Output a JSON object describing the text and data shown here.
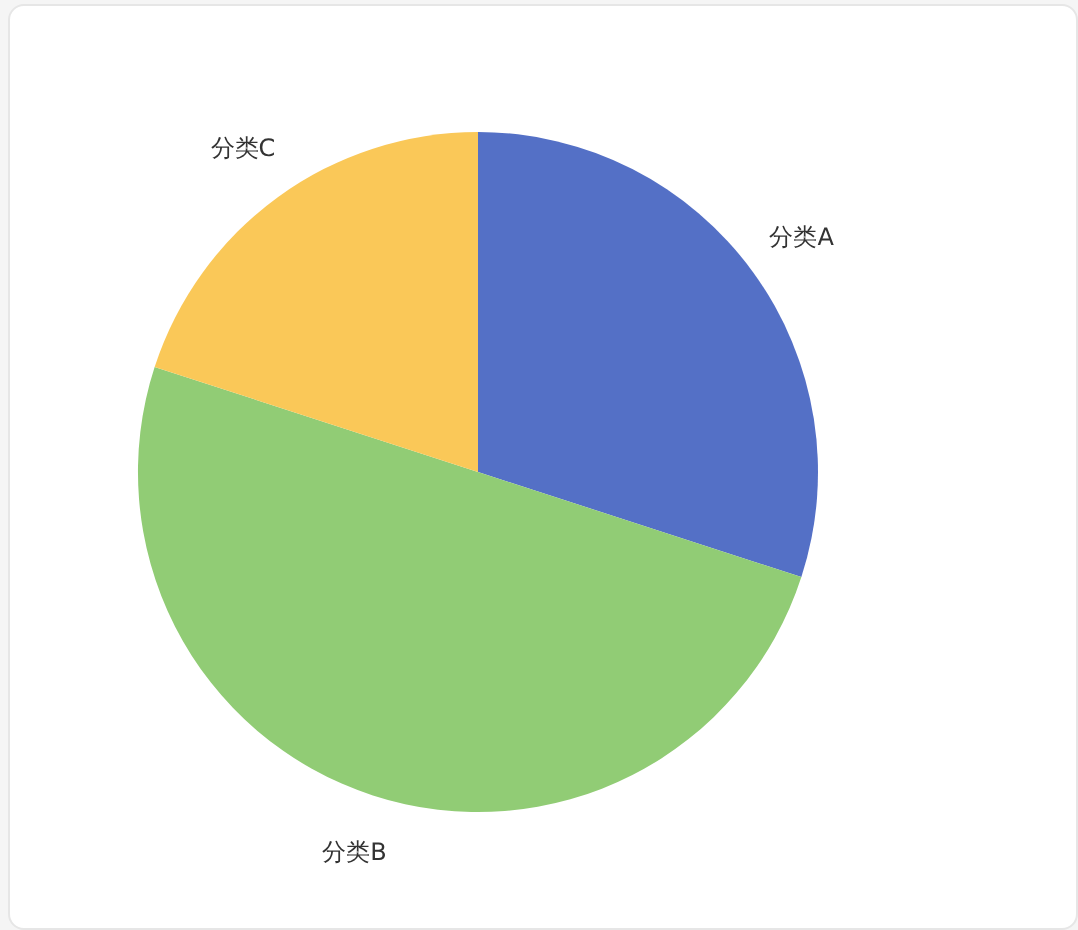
{
  "chart_data": {
    "type": "pie",
    "categories": [
      "分类A",
      "分类B",
      "分类C"
    ],
    "values": [
      30,
      50,
      20
    ],
    "colors": [
      "#5470c6",
      "#91cc75",
      "#fac858"
    ]
  }
}
